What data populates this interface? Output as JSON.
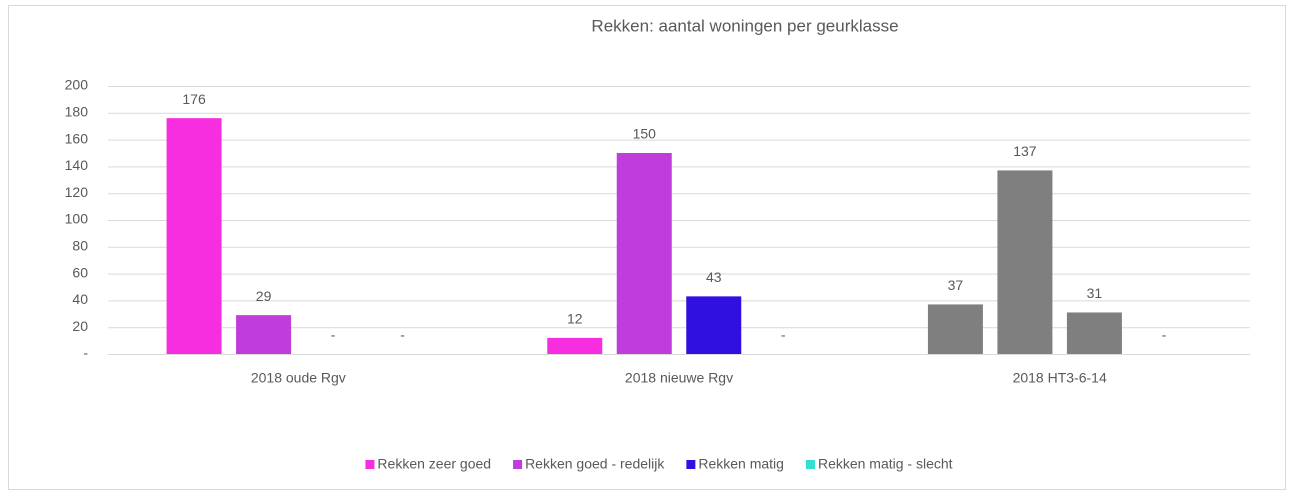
{
  "chart_data": {
    "type": "bar",
    "title": "Rekken: aantal woningen per geurklasse",
    "categories": [
      "2018 oude Rgv",
      "2018 nieuwe Rgv",
      "2018 HT3-6-14"
    ],
    "series": [
      {
        "name": "Rekken zeer goed",
        "color": "#f72ee0",
        "colors": [
          "#f72ee0",
          "#f72ee0",
          "#7f7f7f"
        ],
        "values": [
          176,
          12,
          37
        ]
      },
      {
        "name": "Rekken goed - redelijk",
        "color": "#c03ddb",
        "colors": [
          "#c03ddb",
          "#c03ddb",
          "#7f7f7f"
        ],
        "values": [
          29,
          150,
          137
        ]
      },
      {
        "name": "Rekken matig",
        "color": "#2f10e0",
        "colors": [
          "#2f10e0",
          "#2f10e0",
          "#7f7f7f"
        ],
        "values": [
          0,
          43,
          31
        ],
        "value_labels": [
          "-",
          "43",
          "31"
        ]
      },
      {
        "name": "Rekken matig - slecht",
        "color": "#33e0d0",
        "colors": [
          "#33e0d0",
          "#33e0d0",
          "#7f7f7f"
        ],
        "values": [
          0,
          0,
          0
        ],
        "value_labels": [
          "-",
          "-",
          "-"
        ]
      }
    ],
    "ylim": [
      0,
      200
    ],
    "yticks": [
      {
        "value": 0,
        "label": "-"
      },
      20,
      40,
      60,
      80,
      100,
      120,
      140,
      160,
      180,
      200
    ],
    "grid": true,
    "legend": "bottom"
  }
}
